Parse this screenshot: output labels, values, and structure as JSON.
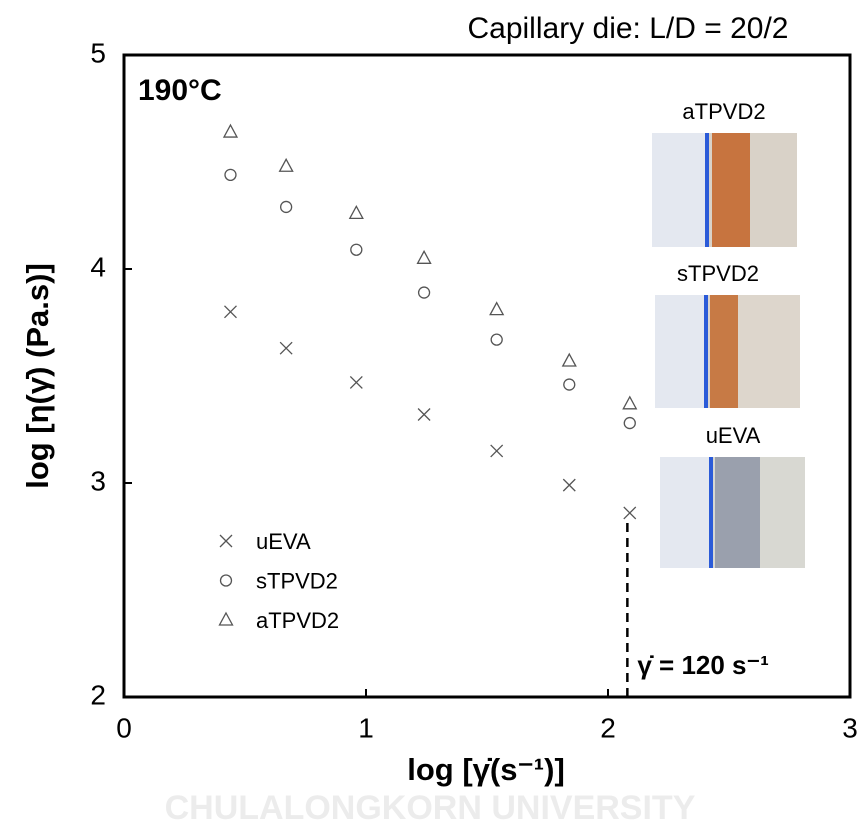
{
  "chart_data": {
    "type": "scatter",
    "title": "Capillary die: L/D = 20/2",
    "temperature_label": "190°C",
    "xlabel": "log [γ̇(s⁻¹)]",
    "ylabel": "log [η(γ̇) (Pa.s)]",
    "x": [
      0.44,
      0.67,
      0.96,
      1.24,
      1.54,
      1.84,
      2.09
    ],
    "series": [
      {
        "name": "uEVA",
        "color": "#555555",
        "marker": "x",
        "values": [
          3.8,
          3.63,
          3.47,
          3.32,
          3.15,
          2.99,
          2.86
        ]
      },
      {
        "name": "sTPVD2",
        "color": "#555555",
        "marker": "circle",
        "values": [
          4.44,
          4.29,
          4.09,
          3.89,
          3.67,
          3.46,
          3.28
        ]
      },
      {
        "name": "aTPVD2",
        "color": "#555555",
        "marker": "triangle",
        "values": [
          4.64,
          4.48,
          4.26,
          4.05,
          3.81,
          3.57,
          3.37
        ]
      }
    ],
    "xlim": [
      0,
      3
    ],
    "xticks": [
      0,
      1,
      2,
      3
    ],
    "ylim": [
      2,
      5
    ],
    "yticks": [
      2,
      3,
      4,
      5
    ],
    "legend": "lower left",
    "reference_line": {
      "x": 2.08,
      "label": "γ̇ = 120 s⁻¹"
    },
    "image_labels": [
      "aTPVD2",
      "sTPVD2",
      "uEVA"
    ],
    "watermark": "CHULALONGKORN UNIVERSITY"
  }
}
